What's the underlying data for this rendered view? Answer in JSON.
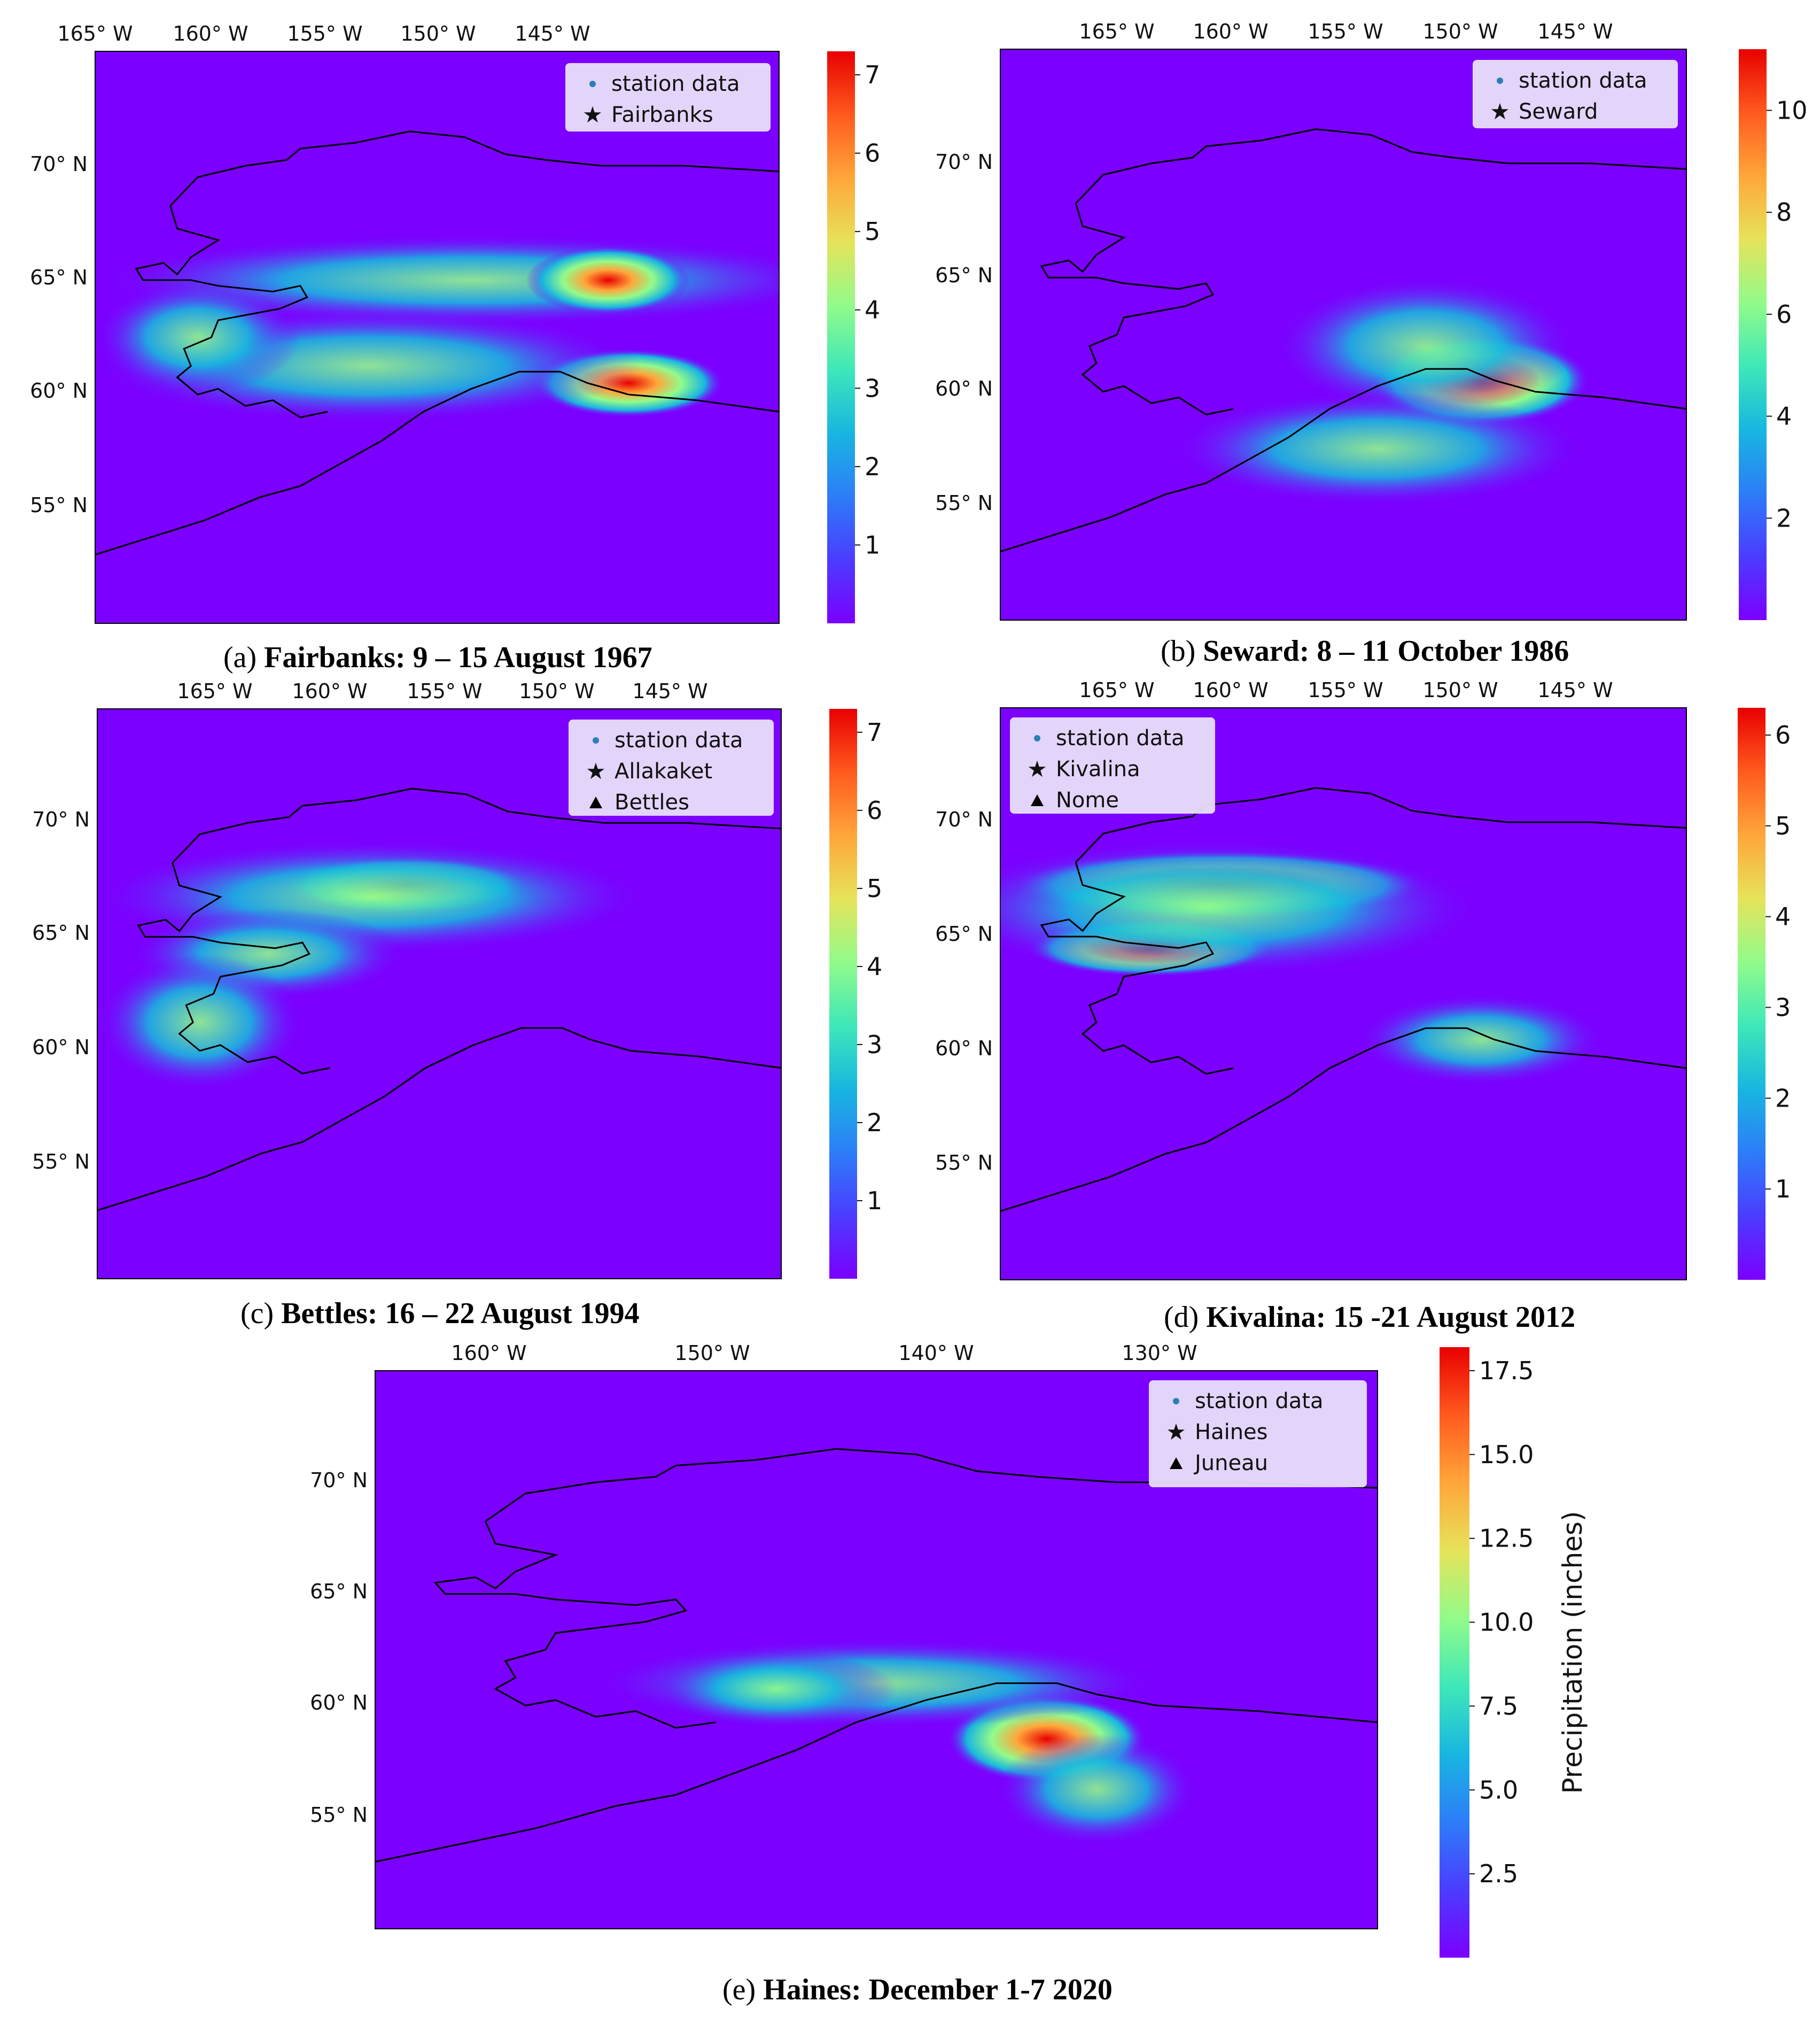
{
  "legend_common": {
    "station_label": "station data"
  },
  "panels": [
    {
      "id": "a",
      "caption_prefix": "(a)",
      "caption_bold": "Fairbanks: 9 – 15 August 1967",
      "lon_ticks": [
        "165° W",
        "160° W",
        "155° W",
        "150° W",
        "145° W"
      ],
      "lat_ticks": [
        "70° N",
        "65° N",
        "60° N",
        "55° N"
      ],
      "legend": [
        {
          "symbol": "dot",
          "label": "station data"
        },
        {
          "symbol": "star",
          "label": "Fairbanks"
        }
      ],
      "colorbar_ticks": [
        "7",
        "6",
        "5",
        "4",
        "3",
        "2",
        "1"
      ],
      "colorbar_max": 7.3
    },
    {
      "id": "b",
      "caption_prefix": "(b)",
      "caption_bold": "Seward: 8 – 11 October 1986",
      "lon_ticks": [
        "165° W",
        "160° W",
        "155° W",
        "150° W",
        "145° W"
      ],
      "lat_ticks": [
        "70° N",
        "65° N",
        "60° N",
        "55° N"
      ],
      "legend": [
        {
          "symbol": "dot",
          "label": "station data"
        },
        {
          "symbol": "star",
          "label": "Seward"
        }
      ],
      "colorbar_ticks": [
        "10",
        "8",
        "6",
        "4",
        "2"
      ],
      "colorbar_max": 11.2
    },
    {
      "id": "c",
      "caption_prefix": "(c)",
      "caption_bold": "Bettles: 16 – 22 August 1994",
      "lon_ticks": [
        "165° W",
        "160° W",
        "155° W",
        "150° W",
        "145° W"
      ],
      "lat_ticks": [
        "70° N",
        "65° N",
        "60° N",
        "55° N"
      ],
      "legend": [
        {
          "symbol": "dot",
          "label": "station data"
        },
        {
          "symbol": "star",
          "label": "Allakaket"
        },
        {
          "symbol": "tri",
          "label": "Bettles"
        }
      ],
      "colorbar_ticks": [
        "7",
        "6",
        "5",
        "4",
        "3",
        "2",
        "1"
      ],
      "colorbar_max": 7.3
    },
    {
      "id": "d",
      "caption_prefix": "(d)",
      "caption_bold": "Kivalina: 15 -21 August 2012",
      "lon_ticks": [
        "165° W",
        "160° W",
        "155° W",
        "150° W",
        "145° W"
      ],
      "lat_ticks": [
        "70° N",
        "65° N",
        "60° N",
        "55° N"
      ],
      "legend": [
        {
          "symbol": "dot",
          "label": "station data"
        },
        {
          "symbol": "star",
          "label": "Kivalina"
        },
        {
          "symbol": "tri",
          "label": "Nome"
        }
      ],
      "colorbar_ticks": [
        "6",
        "5",
        "4",
        "3",
        "2",
        "1"
      ],
      "colorbar_max": 6.3
    },
    {
      "id": "e",
      "caption_prefix": "(e)",
      "caption_bold": "Haines: December 1-7 2020",
      "lon_ticks": [
        "160° W",
        "150° W",
        "140° W",
        "130° W"
      ],
      "lat_ticks": [
        "70° N",
        "65° N",
        "60° N",
        "55° N"
      ],
      "legend": [
        {
          "symbol": "dot",
          "label": "station data"
        },
        {
          "symbol": "star",
          "label": "Haines"
        },
        {
          "symbol": "tri",
          "label": "Juneau"
        }
      ],
      "colorbar_ticks": [
        "17.5",
        "15.0",
        "12.5",
        "10.0",
        "7.5",
        "5.0",
        "2.5"
      ],
      "colorbar_max": 18.2,
      "colorbar_label": "Precipitation (inches)"
    }
  ],
  "colors": {
    "colormap": [
      "#7b00ff",
      "#4b3cff",
      "#2d7df8",
      "#18b6e0",
      "#3ee8b8",
      "#92fb8a",
      "#e6e35a",
      "#ffa63a",
      "#ff5a1e",
      "#e80000"
    ],
    "coastline": "#000000",
    "station_marker": "#2a7fb5"
  }
}
